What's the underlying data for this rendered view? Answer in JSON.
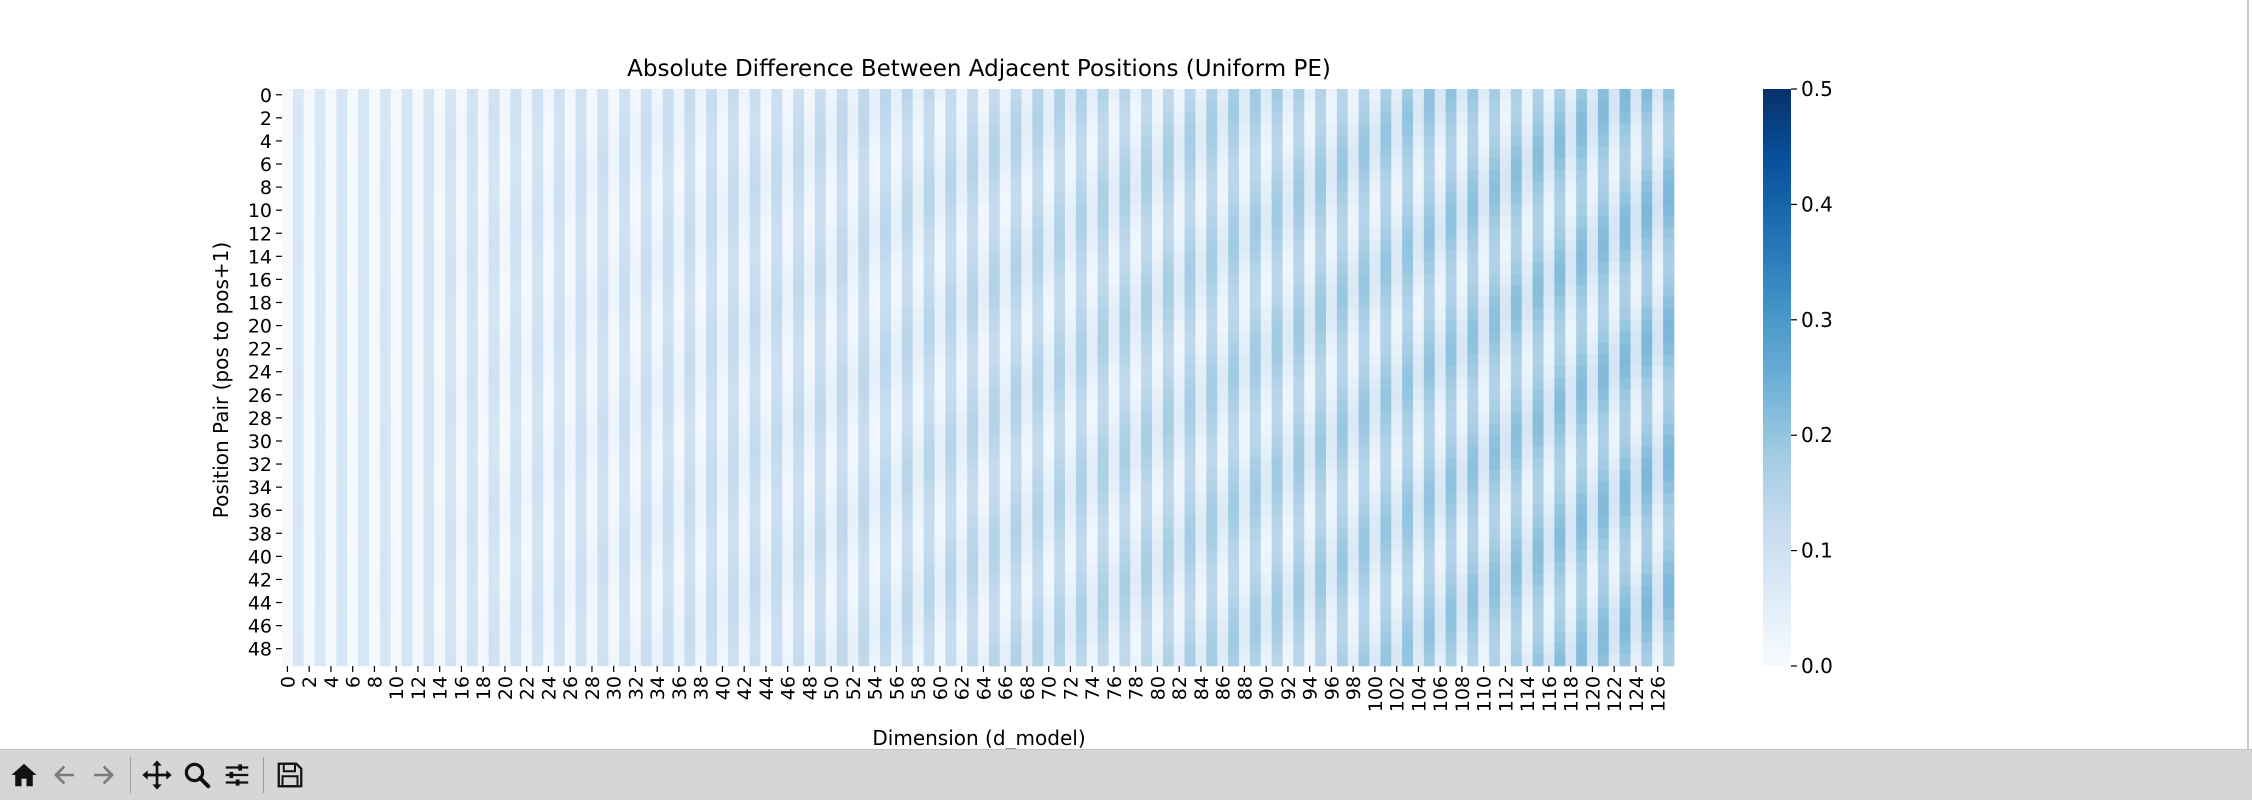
{
  "window": {
    "toolbar": {
      "home_icon": "home-icon",
      "back_icon": "back-arrow-icon",
      "forward_icon": "forward-arrow-icon",
      "pan_icon": "pan-move-icon",
      "zoom_icon": "zoom-magnifier-icon",
      "configure_icon": "configure-subplots-icon",
      "save_icon": "save-disk-icon"
    }
  },
  "chart_data": {
    "type": "heatmap",
    "title": "Absolute Difference Between Adjacent Positions (Uniform PE)",
    "xlabel": "Dimension (d_model)",
    "ylabel": "Position Pair (pos to pos+1)",
    "x_range": [
      0,
      127
    ],
    "y_range": [
      0,
      49
    ],
    "x_tick_step": 2,
    "y_tick_step": 2,
    "n_columns": 128,
    "n_rows": 50,
    "colormap": "Blues",
    "colorbar": {
      "min": 0.0,
      "max": 0.5,
      "ticks": [
        "0.0",
        "0.1",
        "0.2",
        "0.3",
        "0.4",
        "0.5"
      ]
    },
    "value_pattern": {
      "even_dimension_values": {
        "dimension_0": 0.005,
        "dimension_126": 0.06
      },
      "odd_dimension_values": {
        "dimension_1": 0.075,
        "dimension_127": 0.2
      },
      "row_modulation_amplitude": 0.03,
      "grid": false
    }
  }
}
